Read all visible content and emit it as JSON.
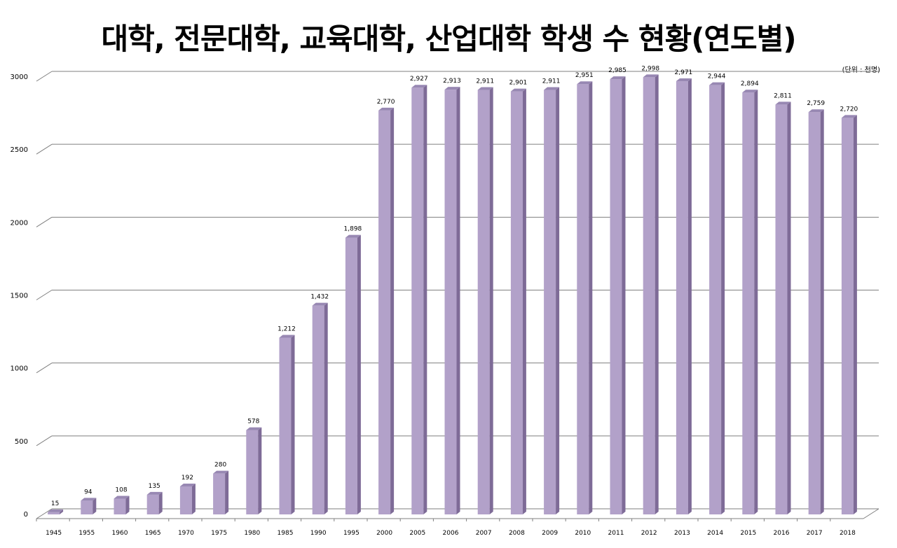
{
  "title": "대학, 전문대학, 교육대학, 산업대학 학생 수 현황(연도별)",
  "unit_note": "(단위 : 천명)",
  "colors": {
    "bar_front": "#b2a1c9",
    "bar_side": "#7e6b97",
    "bar_top": "#9888b3",
    "grid": "#7f7f7f"
  },
  "chart_data": {
    "type": "bar",
    "title": "대학, 전문대학, 교육대학, 산업대학 학생 수 현황(연도별)",
    "unit": "(단위 : 천명)",
    "xlabel": "",
    "ylabel": "",
    "ylim": [
      0,
      3000
    ],
    "yticks": [
      "0",
      "500",
      "1000",
      "1500",
      "2000",
      "2500",
      "3000"
    ],
    "grid": true,
    "categories": [
      "1945",
      "1955",
      "1960",
      "1965",
      "1970",
      "1975",
      "1980",
      "1985",
      "1990",
      "1995",
      "2000",
      "2005",
      "2006",
      "2007",
      "2008",
      "2009",
      "2010",
      "2011",
      "2012",
      "2013",
      "2014",
      "2015",
      "2016",
      "2017",
      "2018"
    ],
    "values": [
      15,
      94,
      108,
      135,
      192,
      280,
      578,
      1212,
      1432,
      1898,
      2770,
      2927,
      2913,
      2911,
      2901,
      2911,
      2951,
      2985,
      2998,
      2971,
      2944,
      2894,
      2811,
      2759,
      2720
    ],
    "labels": [
      "15",
      "94",
      "108",
      "135",
      "192",
      "280",
      "578",
      "1,212",
      "1,432",
      "1,898",
      "2,770",
      "2,927",
      "2,913",
      "2,911",
      "2,901",
      "2,911",
      "2,951",
      "2,985",
      "2,998",
      "2,971",
      "2,944",
      "2,894",
      "2,811",
      "2,759",
      "2,720"
    ]
  }
}
